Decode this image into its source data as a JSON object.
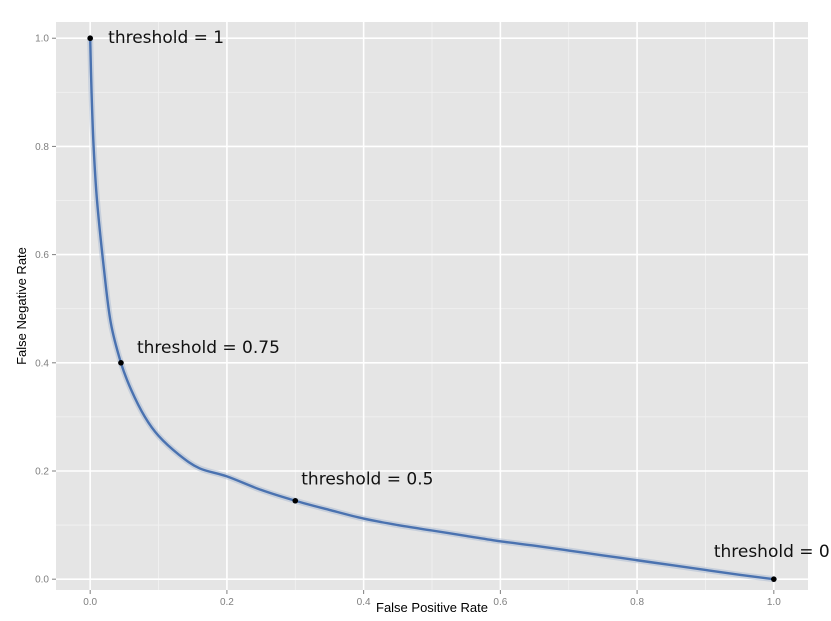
{
  "chart_data": {
    "type": "line",
    "title": "",
    "xlabel": "False Positive Rate",
    "ylabel": "False Negative Rate",
    "xlim": [
      -0.05,
      1.05
    ],
    "ylim": [
      -0.02,
      1.03
    ],
    "grid": true,
    "background_color": "#e5e5e5",
    "grid_color": "#ffffff",
    "line_color": "#4a72b0",
    "x_ticks": [
      0.0,
      0.2,
      0.4,
      0.6,
      0.8,
      1.0
    ],
    "x_tick_labels": [
      "0.0",
      "0.2",
      "0.4",
      "0.6",
      "0.8",
      "1.0"
    ],
    "y_ticks": [
      0.0,
      0.2,
      0.4,
      0.6,
      0.8,
      1.0
    ],
    "y_tick_labels": [
      "0.0",
      "0.2",
      "0.4",
      "0.6",
      "0.8",
      "1.0"
    ],
    "series": [
      {
        "x": [
          0.0,
          0.002,
          0.005,
          0.01,
          0.02,
          0.03,
          0.045,
          0.06,
          0.08,
          0.1,
          0.13,
          0.16,
          0.2,
          0.25,
          0.3,
          0.35,
          0.4,
          0.45,
          0.5,
          0.55,
          0.6,
          0.65,
          0.7,
          0.75,
          0.8,
          0.85,
          0.9,
          0.95,
          1.0
        ],
        "y": [
          1.0,
          0.9,
          0.8,
          0.7,
          0.575,
          0.475,
          0.4,
          0.35,
          0.3,
          0.265,
          0.23,
          0.205,
          0.19,
          0.165,
          0.145,
          0.128,
          0.112,
          0.1,
          0.09,
          0.08,
          0.07,
          0.062,
          0.053,
          0.044,
          0.035,
          0.026,
          0.017,
          0.008,
          0.0
        ]
      }
    ],
    "points": [
      {
        "x": 0.0,
        "y": 1.0,
        "label": "threshold = 1"
      },
      {
        "x": 0.045,
        "y": 0.4,
        "label": "threshold = 0.75"
      },
      {
        "x": 0.3,
        "y": 0.145,
        "label": "threshold = 0.5"
      },
      {
        "x": 1.0,
        "y": 0.0,
        "label": "threshold = 0"
      }
    ]
  }
}
